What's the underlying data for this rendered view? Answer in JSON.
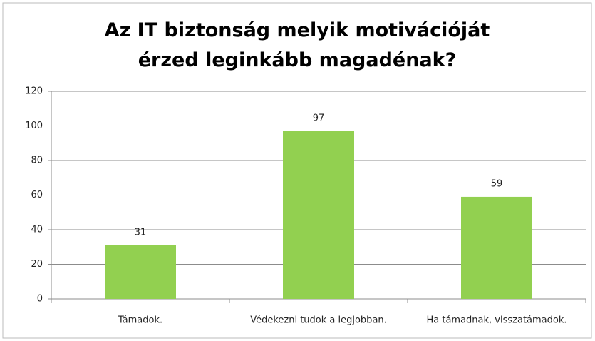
{
  "chart_data": {
    "type": "bar",
    "title": "Az IT biztonság melyik motivációját érzed leginkább magadénak?",
    "categories": [
      "Támadok.",
      "Védekezni tudok a legjobban.",
      "Ha támadnak, visszatámadok."
    ],
    "values": [
      31,
      97,
      59
    ],
    "color": "#92d050",
    "ylim": [
      0,
      120
    ],
    "yticks": [
      0,
      20,
      40,
      60,
      80,
      100,
      120
    ],
    "grid": true
  }
}
